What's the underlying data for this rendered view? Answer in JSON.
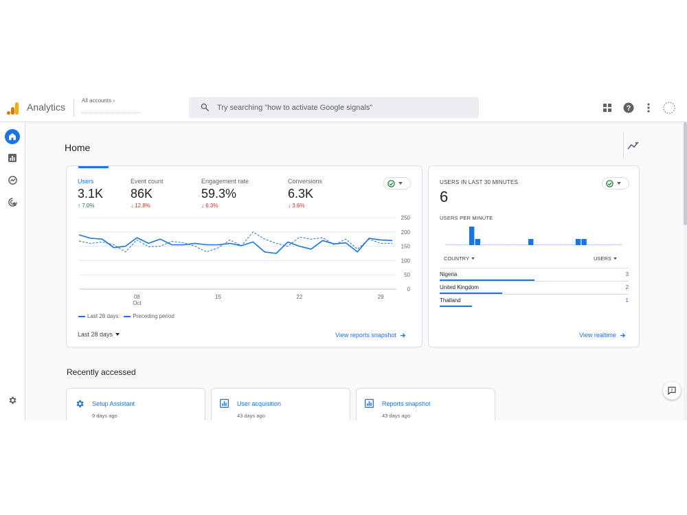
{
  "app": {
    "name": "Analytics"
  },
  "account": {
    "label": "All accounts ›"
  },
  "search": {
    "placeholder": "Try searching \"how to activate Google signals\""
  },
  "page": {
    "title": "Home"
  },
  "metrics": [
    {
      "label": "Users",
      "value": "3.1K",
      "delta": "↑ 7.0%",
      "direction": "up"
    },
    {
      "label": "Event count",
      "value": "86K",
      "delta": "↓ 12.8%",
      "direction": "down"
    },
    {
      "label": "Engagement rate",
      "value": "59.3%",
      "delta": "↓ 6.3%",
      "direction": "down"
    },
    {
      "label": "Conversions",
      "value": "6.3K",
      "delta": "↓ 3.6%",
      "direction": "down"
    }
  ],
  "chart_data": {
    "type": "line",
    "x": [
      1,
      2,
      3,
      4,
      5,
      6,
      7,
      8,
      9,
      10,
      11,
      12,
      13,
      14,
      15,
      16,
      17,
      18,
      19,
      20,
      21,
      22,
      23,
      24,
      25,
      26,
      27,
      28
    ],
    "x_ticks": [
      {
        "x": 6,
        "label": "08",
        "sublabel": "Oct"
      },
      {
        "x": 13,
        "label": "15"
      },
      {
        "x": 20,
        "label": "22"
      },
      {
        "x": 27,
        "label": "29"
      }
    ],
    "y_ticks": [
      0,
      50,
      100,
      150,
      200,
      250
    ],
    "ylim": [
      0,
      250
    ],
    "series": [
      {
        "name": "Last 28 days",
        "style": "solid",
        "values": [
          190,
          178,
          175,
          145,
          150,
          180,
          160,
          175,
          155,
          155,
          160,
          155,
          155,
          160,
          152,
          165,
          130,
          125,
          165,
          150,
          140,
          170,
          158,
          162,
          130,
          178,
          172,
          170
        ]
      },
      {
        "name": "Preceding period",
        "style": "dashed",
        "values": [
          168,
          160,
          165,
          155,
          130,
          172,
          148,
          150,
          167,
          162,
          150,
          130,
          145,
          172,
          152,
          200,
          175,
          160,
          150,
          182,
          175,
          180,
          155,
          175,
          140,
          175,
          160,
          160
        ]
      }
    ],
    "grid": true
  },
  "main_card": {
    "range_label": "Last 28 days",
    "link_label": "View reports snapshot"
  },
  "realtime": {
    "title": "USERS IN LAST 30 MINUTES",
    "value": "6",
    "per_minute_label": "USERS PER MINUTE",
    "per_minute_values": [
      0,
      0,
      0,
      0,
      3,
      1,
      0,
      0,
      0,
      0,
      0,
      0,
      0,
      0,
      1,
      0,
      0,
      0,
      0,
      0,
      0,
      0,
      1,
      1,
      0,
      0,
      0,
      0,
      0,
      0
    ],
    "country_header": "COUNTRY",
    "users_header": "USERS",
    "rows": [
      {
        "country": "Nigeria",
        "users": "3",
        "share": 0.5
      },
      {
        "country": "United Kingdom",
        "users": "2",
        "share": 0.33
      },
      {
        "country": "Thailand",
        "users": "1",
        "share": 0.17
      }
    ],
    "link_label": "View realtime"
  },
  "recent": {
    "title": "Recently accessed",
    "items": [
      {
        "title": "Setup Assistant",
        "time": "9 days ago",
        "icon": "gear-icon"
      },
      {
        "title": "User acquisition",
        "time": "43 days ago",
        "icon": "report-icon"
      },
      {
        "title": "Reports snapshot",
        "time": "43 days ago",
        "icon": "report-icon"
      }
    ]
  },
  "colors": {
    "accent": "#1a73e8",
    "up": "#137333",
    "down": "#d93025",
    "status": "#188038"
  }
}
